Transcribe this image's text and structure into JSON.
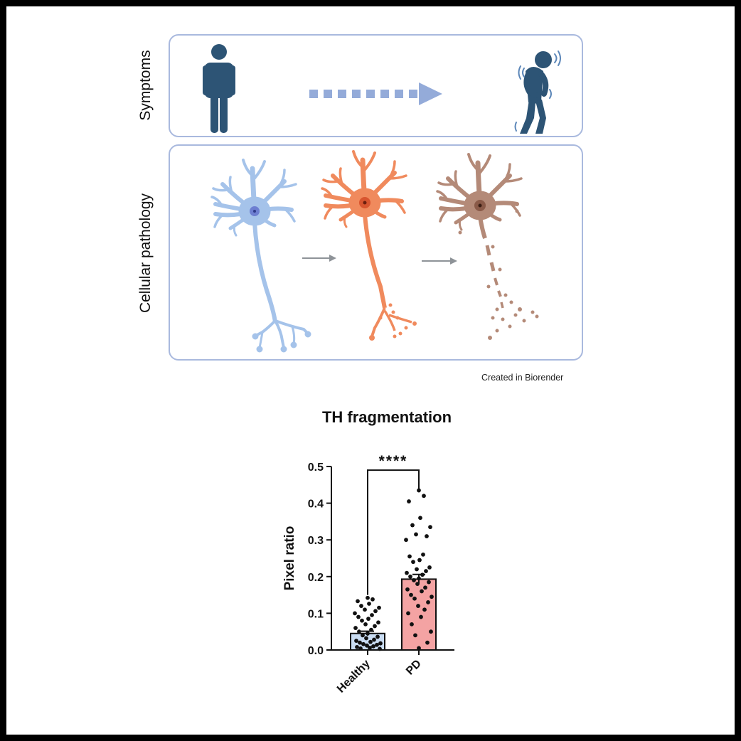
{
  "figure": {
    "panels": {
      "symptoms": {
        "label": "Symptoms"
      },
      "pathology": {
        "label": "Cellular pathology"
      }
    },
    "credit": "Created in Biorender",
    "colors": {
      "frame": "#000000",
      "panel_border": "#a9b9de",
      "person": "#2d5475",
      "arrow": "#94abd9",
      "neuron_healthy": "#a5c3ea",
      "neuron_stressed": "#f08a5d",
      "neuron_degenerating": "#b48a78",
      "bar_healthy": "#c9dcf2",
      "bar_pd": "#f4a3a3"
    },
    "icons": [
      "healthy-person-icon",
      "parkinsonian-person-icon",
      "healthy-neuron",
      "stressed-neuron",
      "degenerating-neuron"
    ]
  },
  "chart_data": {
    "type": "bar",
    "title": "TH fragmentation",
    "xlabel": "",
    "ylabel": "Pixel ratio",
    "categories": [
      "Healthy",
      "PD"
    ],
    "values": [
      0.045,
      0.193
    ],
    "sem": [
      0.006,
      0.013
    ],
    "ylim": [
      0,
      0.5
    ],
    "yticks": [
      "0.0",
      "0.1",
      "0.2",
      "0.3",
      "0.4",
      "0.5"
    ],
    "significance": "****",
    "points": {
      "Healthy": [
        0.142,
        0.138,
        0.133,
        0.126,
        0.12,
        0.115,
        0.11,
        0.106,
        0.1,
        0.095,
        0.09,
        0.085,
        0.08,
        0.075,
        0.07,
        0.065,
        0.06,
        0.055,
        0.05,
        0.045,
        0.04,
        0.036,
        0.032,
        0.028,
        0.025,
        0.022,
        0.02,
        0.018,
        0.016,
        0.014,
        0.012,
        0.01,
        0.008,
        0.006,
        0.004,
        0.003
      ],
      "PD": [
        0.435,
        0.42,
        0.405,
        0.36,
        0.34,
        0.335,
        0.315,
        0.31,
        0.3,
        0.26,
        0.255,
        0.245,
        0.24,
        0.225,
        0.22,
        0.215,
        0.21,
        0.205,
        0.2,
        0.195,
        0.19,
        0.185,
        0.18,
        0.17,
        0.165,
        0.16,
        0.15,
        0.145,
        0.14,
        0.13,
        0.12,
        0.11,
        0.1,
        0.09,
        0.07,
        0.05,
        0.04,
        0.02,
        0.005
      ]
    }
  }
}
